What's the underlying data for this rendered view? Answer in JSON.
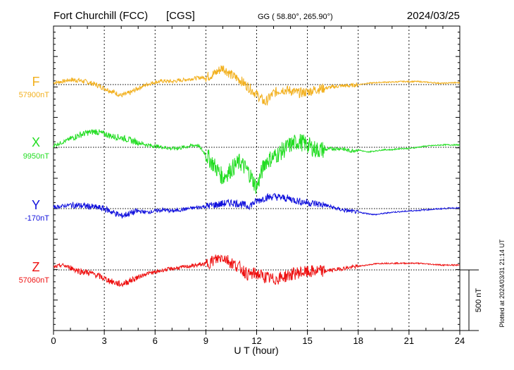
{
  "header": {
    "station": "Fort Churchill (FCC)",
    "agency": "[CGS]",
    "coords": "GG ( 58.80°, 265.90°)",
    "date": "2024/03/25"
  },
  "footer": {
    "plotted": "Plotted at 2024/03/31 21:14 UT"
  },
  "chart_data": {
    "type": "line",
    "xlabel": "U T (hour)",
    "xlim": [
      0,
      24
    ],
    "x_ticks": [
      0,
      3,
      6,
      9,
      12,
      15,
      18,
      21,
      24
    ],
    "scale_bar": {
      "label": "500 nT",
      "value_nT": 500
    },
    "series": [
      {
        "name": "F",
        "baseline_label": "57900nT",
        "baseline_nT": 57900,
        "color": "#f2b01e",
        "x": [
          0,
          0.5,
          1,
          1.5,
          2,
          2.5,
          3,
          3.5,
          4,
          4.5,
          5,
          5.5,
          6,
          6.5,
          7,
          7.5,
          8,
          8.5,
          9,
          9.5,
          10,
          10.5,
          11,
          11.5,
          12,
          12.5,
          13,
          13.5,
          14,
          14.5,
          15,
          15.5,
          16,
          16.5,
          17,
          17.5,
          18,
          18.5,
          19,
          19.5,
          20,
          20.5,
          21,
          21.5,
          22,
          22.5,
          23,
          23.5,
          24
        ],
        "y": [
          15,
          25,
          40,
          35,
          20,
          0,
          -30,
          -60,
          -90,
          -70,
          -30,
          0,
          20,
          30,
          25,
          35,
          45,
          55,
          60,
          90,
          140,
          80,
          40,
          -20,
          -80,
          -150,
          -70,
          -40,
          -50,
          -70,
          -60,
          -40,
          -30,
          -20,
          -10,
          -10,
          0,
          10,
          15,
          20,
          20,
          25,
          25,
          25,
          20,
          15,
          10,
          15,
          15
        ]
      },
      {
        "name": "X",
        "baseline_label": "9950nT",
        "baseline_nT": 9950,
        "color": "#22dd22",
        "x": [
          0,
          0.5,
          1,
          1.5,
          2,
          2.5,
          3,
          3.5,
          4,
          4.5,
          5,
          5.5,
          6,
          6.5,
          7,
          7.5,
          8,
          8.5,
          9,
          9.5,
          10,
          10.5,
          11,
          11.5,
          12,
          12.5,
          13,
          13.5,
          14,
          14.5,
          15,
          15.5,
          16,
          16.5,
          17,
          17.5,
          18,
          18.5,
          19,
          19.5,
          20,
          20.5,
          21,
          21.5,
          22,
          22.5,
          23,
          23.5,
          24
        ],
        "y": [
          15,
          40,
          70,
          100,
          120,
          130,
          110,
          90,
          80,
          60,
          40,
          20,
          10,
          0,
          -10,
          -5,
          10,
          20,
          -60,
          -150,
          -250,
          -180,
          -120,
          -200,
          -330,
          -120,
          -80,
          -30,
          20,
          50,
          20,
          -20,
          -20,
          -10,
          -10,
          -30,
          -20,
          -40,
          -30,
          -20,
          -20,
          -10,
          -10,
          0,
          10,
          15,
          20,
          20,
          20
        ]
      },
      {
        "name": "Y",
        "baseline_label": "-170nT",
        "baseline_nT": -170,
        "color": "#1111dd",
        "x": [
          0,
          0.5,
          1,
          1.5,
          2,
          2.5,
          3,
          3.5,
          4,
          4.5,
          5,
          5.5,
          6,
          6.5,
          7,
          7.5,
          8,
          8.5,
          9,
          9.5,
          10,
          10.5,
          11,
          11.5,
          12,
          12.5,
          13,
          13.5,
          14,
          14.5,
          15,
          15.5,
          16,
          16.5,
          17,
          17.5,
          18,
          18.5,
          19,
          19.5,
          20,
          20.5,
          21,
          21.5,
          22,
          22.5,
          23,
          23.5,
          24
        ],
        "y": [
          10,
          20,
          30,
          25,
          20,
          10,
          0,
          -30,
          -60,
          -40,
          -20,
          -30,
          -20,
          -10,
          -20,
          -10,
          0,
          10,
          20,
          30,
          40,
          50,
          40,
          20,
          60,
          90,
          100,
          90,
          80,
          60,
          50,
          40,
          30,
          10,
          -10,
          -20,
          -30,
          -40,
          -50,
          -40,
          -30,
          -25,
          -20,
          -15,
          -10,
          -5,
          0,
          5,
          5
        ]
      },
      {
        "name": "Z",
        "baseline_label": "57060nT",
        "baseline_nT": 57060,
        "color": "#ee1111",
        "x": [
          0,
          0.5,
          1,
          1.5,
          2,
          2.5,
          3,
          3.5,
          4,
          4.5,
          5,
          5.5,
          6,
          6.5,
          7,
          7.5,
          8,
          8.5,
          9,
          9.5,
          10,
          10.5,
          11,
          11.5,
          12,
          12.5,
          13,
          13.5,
          14,
          14.5,
          15,
          15.5,
          16,
          16.5,
          17,
          17.5,
          18,
          18.5,
          19,
          19.5,
          20,
          20.5,
          21,
          21.5,
          22,
          22.5,
          23,
          23.5,
          24
        ],
        "y": [
          20,
          40,
          20,
          -10,
          -20,
          -40,
          -70,
          -100,
          -120,
          -90,
          -60,
          -30,
          -20,
          0,
          10,
          20,
          30,
          40,
          50,
          80,
          110,
          60,
          20,
          -40,
          -30,
          -60,
          -80,
          -60,
          -40,
          -20,
          -20,
          -10,
          -10,
          0,
          10,
          20,
          30,
          40,
          50,
          55,
          55,
          55,
          55,
          55,
          50,
          45,
          40,
          40,
          40
        ]
      }
    ]
  }
}
